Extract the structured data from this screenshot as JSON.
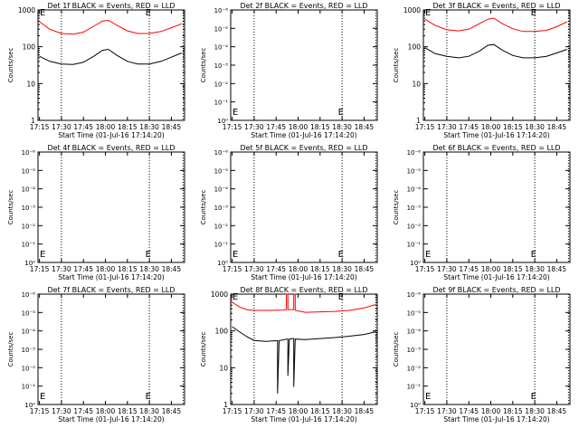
{
  "chart_data": [
    {
      "type": "line",
      "title": "Det 1f BLACK = Events, RED = LLD",
      "xlabel": "Start Time (01-Jul-16 17:14:20)",
      "ylabel": "Counts/sec",
      "xticks": [
        "17:15",
        "17:30",
        "17:45",
        "18:00",
        "18:15",
        "18:30",
        "18:45"
      ],
      "yticks": [
        "1",
        "10",
        "100",
        "1000"
      ],
      "ylim": [
        1,
        1000
      ],
      "yscale": "log",
      "vlines": [
        "17:30",
        "18:30",
        "18:53"
      ],
      "e_markers": [
        "17:14",
        "18:26"
      ],
      "series": [
        {
          "color": "#ff0000",
          "x": [
            "17:15",
            "17:22",
            "17:30",
            "17:38",
            "17:45",
            "17:52",
            "17:58",
            "18:02",
            "18:08",
            "18:15",
            "18:22",
            "18:30",
            "18:38",
            "18:45",
            "18:52"
          ],
          "y": [
            480,
            300,
            230,
            220,
            250,
            360,
            500,
            520,
            380,
            270,
            230,
            230,
            260,
            330,
            420
          ]
        },
        {
          "color": "#000000",
          "x": [
            "17:15",
            "17:22",
            "17:30",
            "17:38",
            "17:45",
            "17:52",
            "17:58",
            "18:02",
            "18:08",
            "18:15",
            "18:22",
            "18:30",
            "18:38",
            "18:45",
            "18:52"
          ],
          "y": [
            55,
            40,
            34,
            33,
            38,
            55,
            80,
            85,
            58,
            40,
            34,
            34,
            40,
            52,
            68
          ]
        }
      ]
    },
    {
      "type": "line",
      "title": "Det 2f BLACK = Events, RED = LLD",
      "xlabel": "Start Time (01-Jul-16 17:14:20)",
      "ylabel": "Counts/sec",
      "xticks": [
        "17:15",
        "17:30",
        "17:45",
        "18:00",
        "18:15",
        "18:30",
        "18:45"
      ],
      "yticks": [
        "10⁰",
        "10⁻¹",
        "10⁻²",
        "10⁻³",
        "10⁻⁴",
        "10⁻⁵",
        "10⁻⁶"
      ],
      "vlines": [
        "17:30",
        "18:30",
        "18:53"
      ],
      "e_markers": [
        "17:14",
        "18:26"
      ],
      "series": []
    },
    {
      "type": "line",
      "title": "Det 3f BLACK = Events, RED = LLD",
      "xlabel": "Start Time (01-Jul-16 17:14:20)",
      "ylabel": "Counts/sec",
      "xticks": [
        "17:15",
        "17:30",
        "17:45",
        "18:00",
        "18:15",
        "18:30",
        "18:45"
      ],
      "yticks": [
        "1",
        "10",
        "100",
        "1000"
      ],
      "ylim": [
        1,
        1000
      ],
      "yscale": "log",
      "vlines": [
        "17:30",
        "18:30",
        "18:53"
      ],
      "e_markers": [
        "17:14",
        "18:26"
      ],
      "series": [
        {
          "color": "#ff0000",
          "x": [
            "17:15",
            "17:22",
            "17:30",
            "17:38",
            "17:45",
            "17:52",
            "17:58",
            "18:02",
            "18:08",
            "18:15",
            "18:22",
            "18:30",
            "18:38",
            "18:45",
            "18:52"
          ],
          "y": [
            560,
            380,
            290,
            270,
            300,
            420,
            560,
            600,
            420,
            310,
            260,
            260,
            280,
            350,
            480
          ]
        },
        {
          "color": "#000000",
          "x": [
            "17:15",
            "17:22",
            "17:30",
            "17:38",
            "17:45",
            "17:52",
            "17:58",
            "18:02",
            "18:08",
            "18:15",
            "18:22",
            "18:30",
            "18:38",
            "18:45",
            "18:52"
          ],
          "y": [
            95,
            65,
            55,
            50,
            55,
            75,
            110,
            115,
            80,
            58,
            50,
            50,
            55,
            68,
            85
          ]
        }
      ]
    },
    {
      "type": "line",
      "title": "Det 4f BLACK = Events, RED = LLD",
      "xlabel": "Start Time (01-Jul-16 17:14:20)",
      "ylabel": "Counts/sec",
      "xticks": [
        "17:15",
        "17:30",
        "17:45",
        "18:00",
        "18:15",
        "18:30",
        "18:45"
      ],
      "yticks": [
        "10⁰",
        "10⁻¹",
        "10⁻²",
        "10⁻³",
        "10⁻⁴",
        "10⁻⁵",
        "10⁻⁶"
      ],
      "vlines": [
        "17:30",
        "18:30",
        "18:53"
      ],
      "e_markers": [
        "17:14",
        "18:26"
      ],
      "series": []
    },
    {
      "type": "line",
      "title": "Det 5f BLACK = Events, RED = LLD",
      "xlabel": "Start Time (01-Jul-16 17:14:20)",
      "ylabel": "Counts/sec",
      "xticks": [
        "17:15",
        "17:30",
        "17:45",
        "18:00",
        "18:15",
        "18:30",
        "18:45"
      ],
      "yticks": [
        "10⁰",
        "10⁻¹",
        "10⁻²",
        "10⁻³",
        "10⁻⁴",
        "10⁻⁵",
        "10⁻⁶"
      ],
      "vlines": [
        "17:30",
        "18:30",
        "18:53"
      ],
      "e_markers": [
        "17:14",
        "18:26"
      ],
      "series": []
    },
    {
      "type": "line",
      "title": "Det 6f BLACK = Events, RED = LLD",
      "xlabel": "Start Time (01-Jul-16 17:14:20)",
      "ylabel": "Counts/sec",
      "xticks": [
        "17:15",
        "17:30",
        "17:45",
        "18:00",
        "18:15",
        "18:30",
        "18:45"
      ],
      "yticks": [
        "10⁰",
        "10⁻¹",
        "10⁻²",
        "10⁻³",
        "10⁻⁴",
        "10⁻⁵",
        "10⁻⁶"
      ],
      "vlines": [
        "17:30",
        "18:30",
        "18:53"
      ],
      "e_markers": [
        "17:14",
        "18:26"
      ],
      "series": []
    },
    {
      "type": "line",
      "title": "Det 7f BLACK = Events, RED = LLD",
      "xlabel": "Start Time (01-Jul-16 17:14:20)",
      "ylabel": "Counts/sec",
      "xticks": [
        "17:15",
        "17:30",
        "17:45",
        "18:00",
        "18:15",
        "18:30",
        "18:45"
      ],
      "yticks": [
        "10⁰",
        "10⁻¹",
        "10⁻²",
        "10⁻³",
        "10⁻⁴",
        "10⁻⁵",
        "10⁻⁶"
      ],
      "vlines": [
        "17:30",
        "18:30",
        "18:53"
      ],
      "e_markers": [
        "17:14",
        "18:26"
      ],
      "series": []
    },
    {
      "type": "line",
      "title": "Det 8f BLACK = Events, RED = LLD",
      "xlabel": "Start Time (01-Jul-16 17:14:20)",
      "ylabel": "Counts/sec",
      "xticks": [
        "17:15",
        "17:30",
        "17:45",
        "18:00",
        "18:15",
        "18:30",
        "18:45"
      ],
      "yticks": [
        "1",
        "10",
        "100",
        "1000"
      ],
      "ylim": [
        1,
        1000
      ],
      "yscale": "log",
      "vlines": [
        "17:30",
        "18:30",
        "18:53"
      ],
      "e_markers": [
        "17:14",
        "18:26"
      ],
      "series": [
        {
          "color": "#ff0000",
          "x": [
            "17:15",
            "17:20",
            "17:25",
            "17:30",
            "17:40",
            "17:50",
            "17:52",
            "17:52",
            "17:53",
            "17:53",
            "17:56",
            "17:57",
            "17:57",
            "17:58",
            "17:58",
            "18:05",
            "18:15",
            "18:25",
            "18:35",
            "18:45",
            "18:53"
          ],
          "y": [
            600,
            450,
            380,
            360,
            360,
            370,
            380,
            1000,
            1000,
            380,
            380,
            380,
            1000,
            1000,
            360,
            320,
            330,
            340,
            360,
            420,
            520
          ]
        },
        {
          "color": "#000000",
          "x": [
            "17:15",
            "17:20",
            "17:25",
            "17:30",
            "17:38",
            "17:45",
            "17:46",
            "17:46",
            "17:47",
            "17:52",
            "17:53",
            "17:53",
            "17:54",
            "17:56",
            "17:57",
            "17:57",
            "17:58",
            "18:05",
            "18:15",
            "18:25",
            "18:35",
            "18:45",
            "18:53"
          ],
          "y": [
            130,
            95,
            70,
            55,
            52,
            54,
            54,
            2,
            54,
            60,
            60,
            6,
            60,
            62,
            62,
            3,
            60,
            58,
            62,
            66,
            72,
            80,
            95
          ]
        }
      ]
    },
    {
      "type": "line",
      "title": "Det 9f BLACK = Events, RED = LLD",
      "xlabel": "Start Time (01-Jul-16 17:14:20)",
      "ylabel": "Counts/sec",
      "xticks": [
        "17:15",
        "17:30",
        "17:45",
        "18:00",
        "18:15",
        "18:30",
        "18:45"
      ],
      "yticks": [
        "10⁰",
        "10⁻¹",
        "10⁻²",
        "10⁻³",
        "10⁻⁴",
        "10⁻⁵",
        "10⁻⁶"
      ],
      "vlines": [
        "17:30",
        "18:30",
        "18:53"
      ],
      "e_markers": [
        "17:14",
        "18:26"
      ],
      "series": []
    }
  ],
  "labels": {
    "e_marker": "E"
  }
}
